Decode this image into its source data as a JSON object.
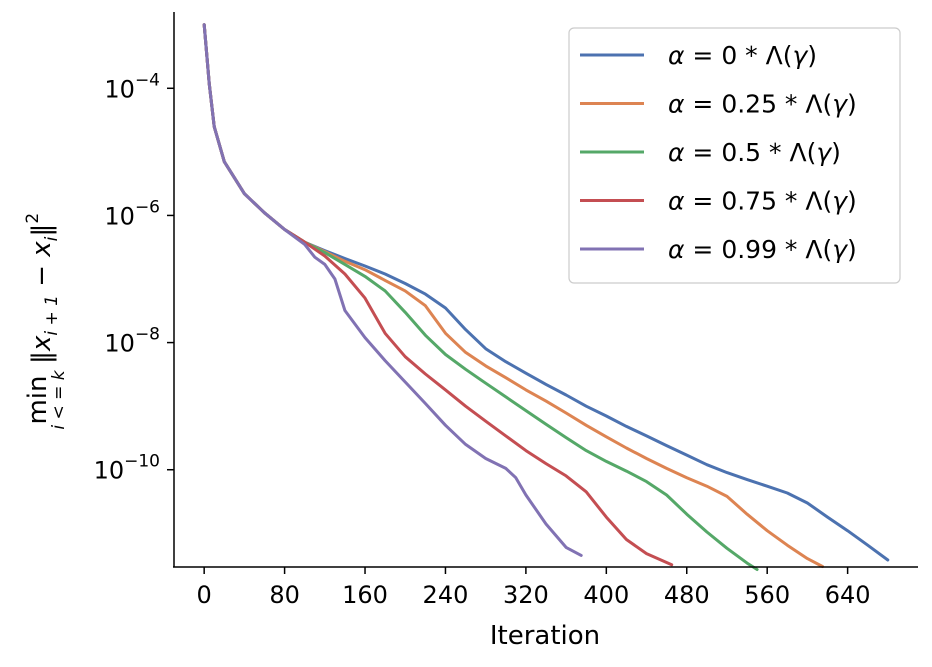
{
  "chart_data": {
    "type": "line",
    "title": "",
    "xlabel": "Iteration",
    "ylabel": "min_{i<=k} ||x_{i+1} - x_i||^2",
    "ylabel_parts": {
      "min": "min",
      "sub": "i < = k",
      "norm_open": "‖x",
      "norm_sub1": "i + 1",
      "minus": " − x",
      "norm_sub2": "i",
      "norm_close": "‖",
      "sq": "2"
    },
    "xticks": [
      0,
      80,
      160,
      240,
      320,
      400,
      480,
      560,
      640
    ],
    "xlim": [
      -30,
      710
    ],
    "yscale": "log",
    "yticks": [
      {
        "base": "10",
        "exp": "−4",
        "value": 0.0001
      },
      {
        "base": "10",
        "exp": "−6",
        "value": 1e-06
      },
      {
        "base": "10",
        "exp": "−8",
        "value": 1e-08
      },
      {
        "base": "10",
        "exp": "−10",
        "value": 1e-10
      }
    ],
    "ylim_log10": [
      -11.53,
      -2.8
    ],
    "legend_position": "upper right",
    "grid": false,
    "series": [
      {
        "name": "α = 0 * Λ(γ)",
        "label_parts": [
          "α",
          " = 0 * Λ(",
          "γ",
          ")"
        ],
        "color": "#4c72b0",
        "points": [
          [
            0,
            0.001
          ],
          [
            5,
            0.00012
          ],
          [
            10,
            2.5e-05
          ],
          [
            20,
            7e-06
          ],
          [
            40,
            2.2e-06
          ],
          [
            60,
            1.1e-06
          ],
          [
            80,
            6e-07
          ],
          [
            100,
            3.8e-07
          ],
          [
            120,
            2.8e-07
          ],
          [
            140,
            2.1e-07
          ],
          [
            160,
            1.6e-07
          ],
          [
            180,
            1.2e-07
          ],
          [
            200,
            8.5e-08
          ],
          [
            220,
            5.8e-08
          ],
          [
            240,
            3.5e-08
          ],
          [
            260,
            1.6e-08
          ],
          [
            280,
            8e-09
          ],
          [
            300,
            5e-09
          ],
          [
            320,
            3.3e-09
          ],
          [
            340,
            2.2e-09
          ],
          [
            360,
            1.5e-09
          ],
          [
            380,
            1e-09
          ],
          [
            400,
            7e-10
          ],
          [
            420,
            4.8e-10
          ],
          [
            440,
            3.4e-10
          ],
          [
            460,
            2.4e-10
          ],
          [
            480,
            1.7e-10
          ],
          [
            500,
            1.2e-10
          ],
          [
            520,
            9e-11
          ],
          [
            540,
            7e-11
          ],
          [
            560,
            5.5e-11
          ],
          [
            580,
            4.3e-11
          ],
          [
            600,
            3e-11
          ],
          [
            620,
            1.8e-11
          ],
          [
            640,
            1.1e-11
          ],
          [
            660,
            6.5e-12
          ],
          [
            680,
            3.8e-12
          ]
        ]
      },
      {
        "name": "α = 0.25 * Λ(γ)",
        "label_parts": [
          "α",
          " = 0.25 * Λ(",
          "γ",
          ")"
        ],
        "color": "#dd8452",
        "points": [
          [
            0,
            0.001
          ],
          [
            5,
            0.00012
          ],
          [
            10,
            2.5e-05
          ],
          [
            20,
            7e-06
          ],
          [
            40,
            2.2e-06
          ],
          [
            60,
            1.1e-06
          ],
          [
            80,
            6e-07
          ],
          [
            100,
            3.8e-07
          ],
          [
            120,
            2.7e-07
          ],
          [
            140,
            1.9e-07
          ],
          [
            160,
            1.4e-07
          ],
          [
            180,
            9.5e-08
          ],
          [
            200,
            6.5e-08
          ],
          [
            220,
            3.8e-08
          ],
          [
            240,
            1.4e-08
          ],
          [
            260,
            7e-09
          ],
          [
            280,
            4.3e-09
          ],
          [
            300,
            2.8e-09
          ],
          [
            320,
            1.8e-09
          ],
          [
            340,
            1.2e-09
          ],
          [
            360,
            7.8e-10
          ],
          [
            380,
            5e-10
          ],
          [
            400,
            3.3e-10
          ],
          [
            420,
            2.2e-10
          ],
          [
            440,
            1.5e-10
          ],
          [
            460,
            1.05e-10
          ],
          [
            480,
            7.5e-11
          ],
          [
            500,
            5.5e-11
          ],
          [
            520,
            3.8e-11
          ],
          [
            540,
            2e-11
          ],
          [
            560,
            1.1e-11
          ],
          [
            580,
            6.5e-12
          ],
          [
            600,
            4e-12
          ],
          [
            615,
            3e-12
          ]
        ]
      },
      {
        "name": "α = 0.5 * Λ(γ)",
        "label_parts": [
          "α",
          " = 0.5 * Λ(",
          "γ",
          ")"
        ],
        "color": "#55a868",
        "points": [
          [
            0,
            0.001
          ],
          [
            5,
            0.00012
          ],
          [
            10,
            2.5e-05
          ],
          [
            20,
            7e-06
          ],
          [
            40,
            2.2e-06
          ],
          [
            60,
            1.1e-06
          ],
          [
            80,
            6e-07
          ],
          [
            100,
            3.8e-07
          ],
          [
            120,
            2.6e-07
          ],
          [
            140,
            1.7e-07
          ],
          [
            160,
            1.1e-07
          ],
          [
            180,
            6.5e-08
          ],
          [
            200,
            3e-08
          ],
          [
            220,
            1.3e-08
          ],
          [
            240,
            6.5e-09
          ],
          [
            260,
            3.8e-09
          ],
          [
            280,
            2.3e-09
          ],
          [
            300,
            1.4e-09
          ],
          [
            320,
            8.5e-10
          ],
          [
            340,
            5.2e-10
          ],
          [
            360,
            3.2e-10
          ],
          [
            380,
            2e-10
          ],
          [
            400,
            1.35e-10
          ],
          [
            420,
            9.5e-11
          ],
          [
            440,
            6.5e-11
          ],
          [
            460,
            4e-11
          ],
          [
            480,
            2e-11
          ],
          [
            500,
            1.05e-11
          ],
          [
            520,
            5.8e-12
          ],
          [
            540,
            3.4e-12
          ],
          [
            550,
            2.7e-12
          ]
        ]
      },
      {
        "name": "α = 0.75 * Λ(γ)",
        "label_parts": [
          "α",
          " = 0.75 * Λ(",
          "γ",
          ")"
        ],
        "color": "#c44e52",
        "points": [
          [
            0,
            0.001
          ],
          [
            5,
            0.00012
          ],
          [
            10,
            2.5e-05
          ],
          [
            20,
            7e-06
          ],
          [
            40,
            2.2e-06
          ],
          [
            60,
            1.1e-06
          ],
          [
            80,
            6e-07
          ],
          [
            100,
            3.8e-07
          ],
          [
            120,
            2.3e-07
          ],
          [
            140,
            1.2e-07
          ],
          [
            160,
            5e-08
          ],
          [
            180,
            1.4e-08
          ],
          [
            200,
            6e-09
          ],
          [
            220,
            3.2e-09
          ],
          [
            240,
            1.8e-09
          ],
          [
            260,
            1e-09
          ],
          [
            280,
            5.8e-10
          ],
          [
            300,
            3.4e-10
          ],
          [
            320,
            2e-10
          ],
          [
            340,
            1.25e-10
          ],
          [
            360,
            8e-11
          ],
          [
            380,
            4.5e-11
          ],
          [
            400,
            1.8e-11
          ],
          [
            420,
            8e-12
          ],
          [
            440,
            4.8e-12
          ],
          [
            465,
            3.2e-12
          ]
        ]
      },
      {
        "name": "α = 0.99 * Λ(γ)",
        "label_parts": [
          "α",
          " = 0.99 * Λ(",
          "γ",
          ")"
        ],
        "color": "#8172b3",
        "points": [
          [
            0,
            0.001
          ],
          [
            5,
            0.00012
          ],
          [
            10,
            2.5e-05
          ],
          [
            20,
            7e-06
          ],
          [
            40,
            2.2e-06
          ],
          [
            60,
            1.1e-06
          ],
          [
            80,
            6e-07
          ],
          [
            100,
            3.5e-07
          ],
          [
            110,
            2.2e-07
          ],
          [
            120,
            1.7e-07
          ],
          [
            130,
            1e-07
          ],
          [
            140,
            3.2e-08
          ],
          [
            160,
            1.2e-08
          ],
          [
            180,
            5.2e-09
          ],
          [
            200,
            2.4e-09
          ],
          [
            220,
            1.1e-09
          ],
          [
            240,
            5e-10
          ],
          [
            260,
            2.5e-10
          ],
          [
            280,
            1.5e-10
          ],
          [
            300,
            1.05e-10
          ],
          [
            310,
            7.5e-11
          ],
          [
            320,
            4e-11
          ],
          [
            340,
            1.4e-11
          ],
          [
            360,
            6e-12
          ],
          [
            375,
            4.5e-12
          ]
        ]
      }
    ]
  }
}
